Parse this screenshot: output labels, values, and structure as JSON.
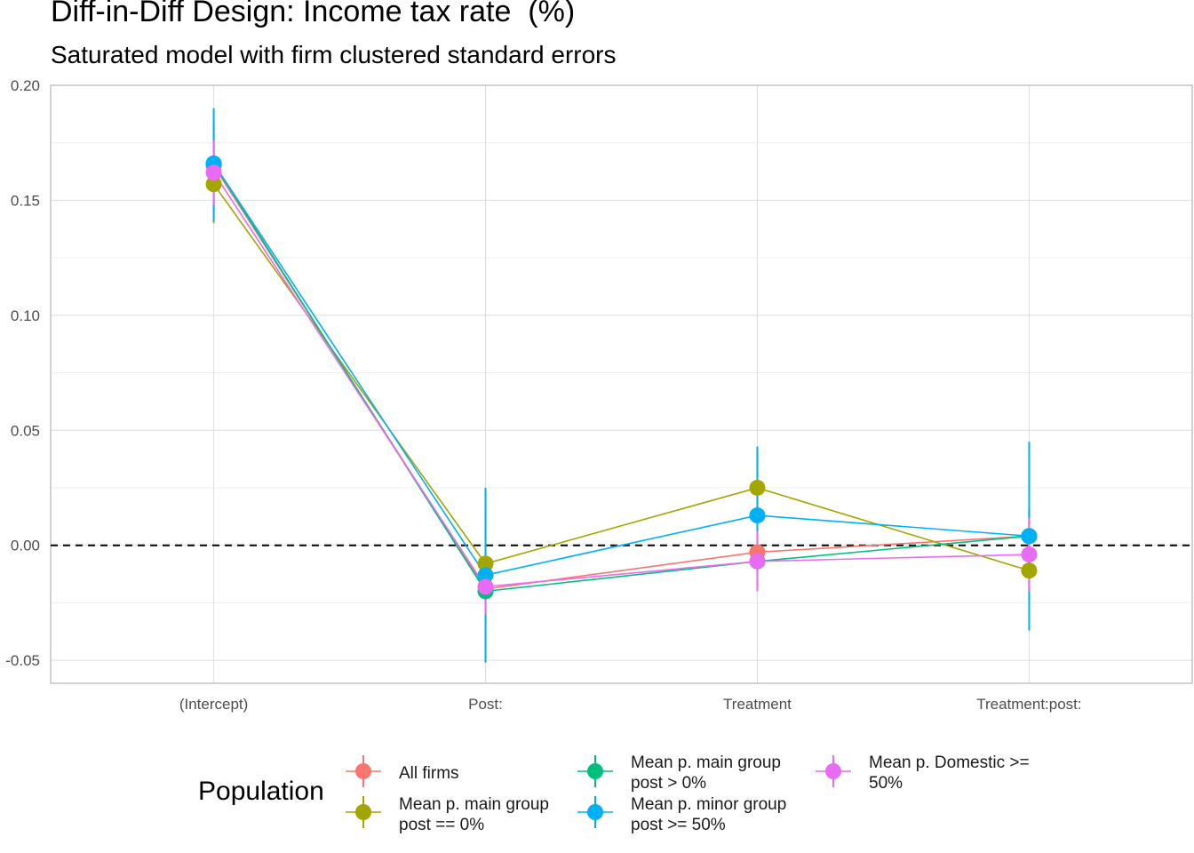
{
  "title": "Diff-in-Diff Design: Income tax rate  (%)",
  "subtitle": "Saturated model with firm clustered standard errors",
  "chart_data": {
    "type": "scatter",
    "categories": [
      "(Intercept)",
      "Post:",
      "Treatment",
      "Treatment:post:"
    ],
    "ylim": [
      -0.06,
      0.2
    ],
    "yticks": [
      -0.05,
      0.0,
      0.05,
      0.1,
      0.15,
      0.2
    ],
    "ytick_labels": [
      "-0.05",
      "0.00",
      "0.05",
      "0.10",
      "0.15",
      "0.20"
    ],
    "reference_line": 0,
    "grid": true,
    "legend_position": "bottom",
    "legend_title": "Population",
    "series": [
      {
        "name": "All firms",
        "color": "#F8766D",
        "values": [
          0.165,
          -0.019,
          -0.003,
          0.004
        ],
        "lower": [
          0.148,
          -0.034,
          -0.013,
          -0.008
        ],
        "upper": [
          0.182,
          -0.004,
          0.007,
          0.016
        ]
      },
      {
        "name": "Mean p. main group post == 0%",
        "color": "#A3A500",
        "values": [
          0.157,
          -0.008,
          0.025,
          -0.011
        ],
        "lower": [
          0.14,
          -0.03,
          0.009,
          -0.024
        ],
        "upper": [
          0.174,
          0.014,
          0.041,
          0.002
        ]
      },
      {
        "name": "Mean p. main group post > 0%",
        "color": "#00BF7D",
        "values": [
          0.166,
          -0.02,
          -0.007,
          0.004
        ],
        "lower": [
          0.148,
          -0.035,
          -0.016,
          -0.008
        ],
        "upper": [
          0.184,
          -0.005,
          0.002,
          0.016
        ]
      },
      {
        "name": "Mean p. minor group post >= 50%",
        "color": "#00B0F6",
        "values": [
          0.166,
          -0.013,
          0.013,
          0.004
        ],
        "lower": [
          0.141,
          -0.051,
          -0.017,
          -0.037
        ],
        "upper": [
          0.19,
          0.025,
          0.043,
          0.045
        ]
      },
      {
        "name": "Mean p. Domestic >= 50%",
        "color": "#E76BF3",
        "values": [
          0.162,
          -0.018,
          -0.007,
          -0.004
        ],
        "lower": [
          0.148,
          -0.03,
          -0.02,
          -0.02
        ],
        "upper": [
          0.176,
          -0.006,
          0.006,
          0.012
        ]
      }
    ]
  },
  "legend": {
    "title": "Population",
    "items": [
      {
        "line1": "All firms",
        "line2": "",
        "color": "#F8766D"
      },
      {
        "line1": "Mean p. main group",
        "line2": "post == 0%",
        "color": "#A3A500"
      },
      {
        "line1": "Mean p. main group",
        "line2": "post > 0%",
        "color": "#00BF7D"
      },
      {
        "line1": "Mean p. minor group",
        "line2": "post >= 50%",
        "color": "#00B0F6"
      },
      {
        "line1": "Mean p. Domestic >=",
        "line2": "50%",
        "color": "#E76BF3"
      }
    ]
  }
}
